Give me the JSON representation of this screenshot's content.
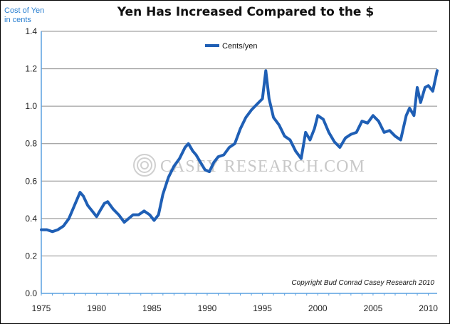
{
  "chart_data": {
    "type": "line",
    "title": "Yen Has Increased Compared to the $",
    "ylabel_lines": [
      "Cost of Yen",
      "in cents"
    ],
    "ylim": [
      0.0,
      1.4
    ],
    "yticks": [
      "0.0",
      "0.2",
      "0.4",
      "0.6",
      "0.8",
      "1.0",
      "1.2",
      "1.4"
    ],
    "xlim": [
      1975,
      2010.8
    ],
    "xticks": [
      "1975",
      "1980",
      "1985",
      "1990",
      "1995",
      "2000",
      "2005",
      "2010"
    ],
    "grid": true,
    "legend_position": "top-center",
    "copyright": "Copyright Bud Conrad Casey Research 2010",
    "watermark": "CASEY RESEARCH.COM",
    "colors": {
      "series": "#1f5fb5",
      "axis": "#5aa0e0",
      "grid": "#8c8c8c"
    },
    "series": [
      {
        "name": "Cents/yen",
        "x": [
          1975.0,
          1975.5,
          1976.0,
          1976.5,
          1977.0,
          1977.5,
          1978.0,
          1978.5,
          1978.8,
          1979.2,
          1979.6,
          1980.0,
          1980.3,
          1980.7,
          1981.0,
          1981.5,
          1982.0,
          1982.5,
          1982.9,
          1983.3,
          1983.8,
          1984.3,
          1984.8,
          1985.2,
          1985.6,
          1986.0,
          1986.5,
          1987.0,
          1987.5,
          1988.0,
          1988.3,
          1988.7,
          1989.0,
          1989.4,
          1989.8,
          1990.2,
          1990.6,
          1991.0,
          1991.5,
          1992.0,
          1992.5,
          1993.0,
          1993.5,
          1994.0,
          1994.5,
          1995.0,
          1995.3,
          1995.6,
          1996.0,
          1996.5,
          1997.0,
          1997.5,
          1998.0,
          1998.5,
          1998.9,
          1999.3,
          1999.7,
          2000.0,
          2000.5,
          2001.0,
          2001.5,
          2002.0,
          2002.5,
          2003.0,
          2003.5,
          2004.0,
          2004.5,
          2005.0,
          2005.5,
          2006.0,
          2006.5,
          2007.0,
          2007.5,
          2008.0,
          2008.3,
          2008.7,
          2009.0,
          2009.3,
          2009.7,
          2010.0,
          2010.4,
          2010.8
        ],
        "values": [
          0.34,
          0.34,
          0.33,
          0.34,
          0.36,
          0.4,
          0.47,
          0.54,
          0.52,
          0.47,
          0.44,
          0.41,
          0.44,
          0.48,
          0.49,
          0.45,
          0.42,
          0.38,
          0.4,
          0.42,
          0.42,
          0.44,
          0.42,
          0.39,
          0.42,
          0.53,
          0.62,
          0.68,
          0.72,
          0.78,
          0.8,
          0.76,
          0.74,
          0.7,
          0.66,
          0.65,
          0.7,
          0.73,
          0.74,
          0.78,
          0.8,
          0.88,
          0.94,
          0.98,
          1.01,
          1.04,
          1.19,
          1.04,
          0.94,
          0.9,
          0.84,
          0.82,
          0.76,
          0.72,
          0.86,
          0.82,
          0.88,
          0.95,
          0.93,
          0.86,
          0.81,
          0.78,
          0.83,
          0.85,
          0.86,
          0.92,
          0.91,
          0.95,
          0.92,
          0.86,
          0.87,
          0.84,
          0.82,
          0.95,
          0.99,
          0.95,
          1.1,
          1.02,
          1.1,
          1.11,
          1.08,
          1.19
        ]
      }
    ]
  }
}
